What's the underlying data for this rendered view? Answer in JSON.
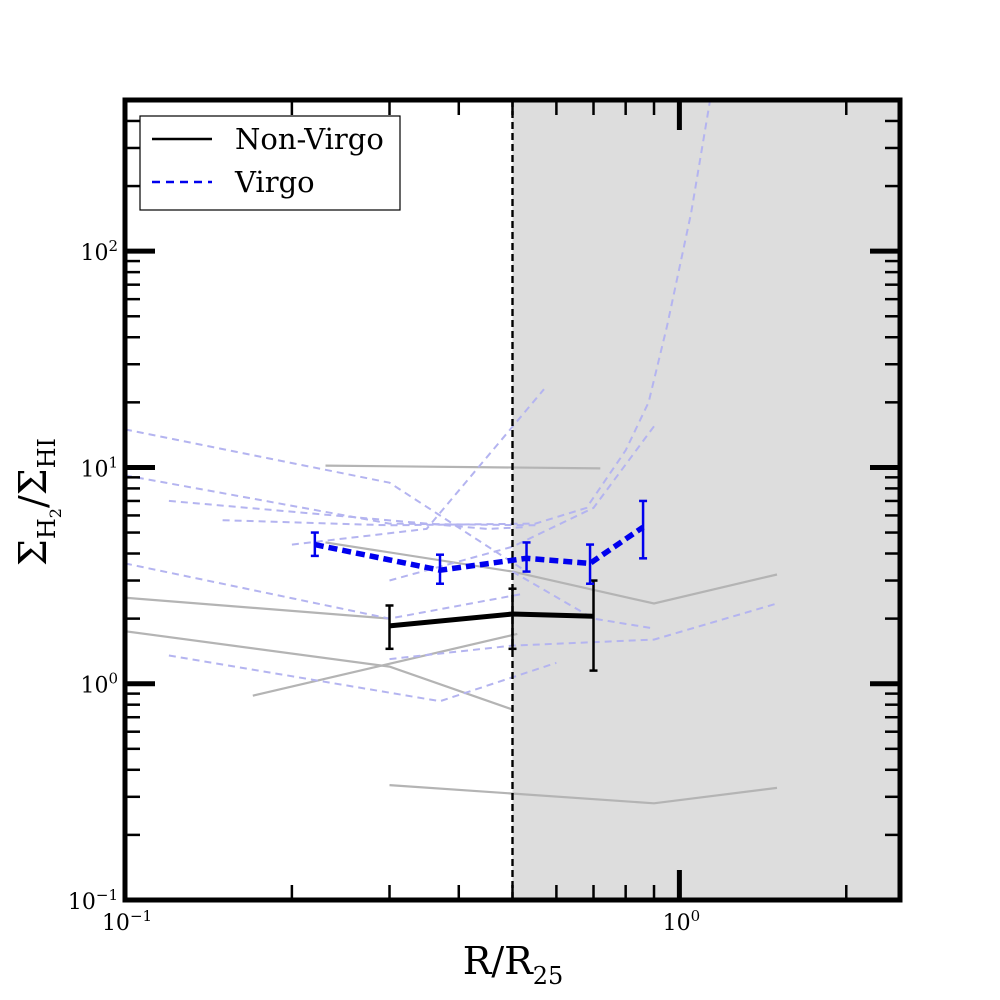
{
  "chart_data": {
    "type": "line",
    "x_scale": "log",
    "y_scale": "log",
    "xlim": [
      0.1,
      2.5
    ],
    "ylim": [
      0.1,
      500
    ],
    "x_ticks": [
      {
        "value": 0.1,
        "base": "10",
        "exp": "−1"
      },
      {
        "value": 1,
        "base": "10",
        "exp": "0"
      }
    ],
    "y_ticks": [
      {
        "value": 0.1,
        "base": "10",
        "exp": "−1"
      },
      {
        "value": 1,
        "base": "10",
        "exp": "0"
      },
      {
        "value": 10,
        "base": "10",
        "exp": "1"
      },
      {
        "value": 100,
        "base": "10",
        "exp": "2"
      }
    ],
    "xlabel": {
      "main": "R/R",
      "sub": "25"
    },
    "ylabel": {
      "sigma": "Σ",
      "h2_main": "H",
      "h2_sub": "2",
      "sep": "/",
      "hi": "HI"
    },
    "vline_x": 0.5,
    "shaded_region_x": [
      0.5,
      2.5
    ],
    "colors": {
      "non_virgo": "#000000",
      "virgo": "#0000ee",
      "individual_non_virgo": "#b4b4b4",
      "individual_virgo": "#b4b4f0",
      "shade": "#dddddd"
    },
    "legend": {
      "location": "upper-left",
      "entries": [
        {
          "label": "Non-Virgo",
          "style": "solid",
          "color": "#000000"
        },
        {
          "label": "Virgo",
          "style": "dashed",
          "color": "#0000ee"
        }
      ]
    },
    "series": [
      {
        "name": "Non-Virgo",
        "style": "solid",
        "x": [
          0.3,
          0.5,
          0.7
        ],
        "y": [
          1.85,
          2.1,
          2.05
        ],
        "yerr_low": [
          1.45,
          1.45,
          1.15
        ],
        "yerr_high": [
          2.3,
          2.75,
          3.0
        ]
      },
      {
        "name": "Virgo",
        "style": "dashed",
        "x": [
          0.22,
          0.37,
          0.53,
          0.69,
          0.86
        ],
        "y": [
          4.4,
          3.35,
          3.8,
          3.6,
          5.3
        ],
        "yerr_low": [
          3.9,
          2.9,
          3.3,
          2.9,
          3.8
        ],
        "yerr_high": [
          5.0,
          3.95,
          4.5,
          4.4,
          7.0
        ]
      }
    ],
    "individual_non_virgo": [
      {
        "x": [
          0.23,
          0.72
        ],
        "y": [
          10.2,
          9.9
        ]
      },
      {
        "x": [
          0.23,
          0.5,
          0.9,
          1.5
        ],
        "y": [
          4.5,
          3.3,
          2.35,
          3.2
        ]
      },
      {
        "x": [
          0.1,
          0.3
        ],
        "y": [
          2.5,
          2.0
        ]
      },
      {
        "x": [
          0.1,
          0.3,
          0.5
        ],
        "y": [
          1.75,
          1.2,
          0.76
        ]
      },
      {
        "x": [
          0.17,
          0.51
        ],
        "y": [
          0.88,
          1.7
        ]
      },
      {
        "x": [
          0.3,
          0.9,
          1.5
        ],
        "y": [
          0.34,
          0.28,
          0.33
        ]
      }
    ],
    "individual_virgo": [
      {
        "x": [
          0.1,
          0.3,
          0.53
        ],
        "y": [
          15,
          8.5,
          3.3
        ]
      },
      {
        "x": [
          0.1,
          0.3,
          0.55
        ],
        "y": [
          9.2,
          5.5,
          5.4
        ]
      },
      {
        "x": [
          0.12,
          0.45,
          0.53
        ],
        "y": [
          7.0,
          5.2,
          5.3
        ]
      },
      {
        "x": [
          0.2,
          0.35,
          0.57
        ],
        "y": [
          4.4,
          5.2,
          23
        ]
      },
      {
        "x": [
          0.15,
          0.3,
          0.55,
          0.68,
          0.8,
          0.88,
          0.95,
          1.05,
          1.15
        ],
        "y": [
          5.7,
          5.4,
          5.5,
          6.5,
          12,
          20,
          45,
          150,
          600
        ]
      },
      {
        "x": [
          0.1,
          0.3,
          0.52
        ],
        "y": [
          3.6,
          2.0,
          2.6
        ]
      },
      {
        "x": [
          0.3,
          0.5,
          0.7,
          0.9
        ],
        "y": [
          3.0,
          4.3,
          6.5,
          15.5
        ]
      },
      {
        "x": [
          0.5,
          0.7,
          0.9
        ],
        "y": [
          3.3,
          2.0,
          1.8
        ]
      },
      {
        "x": [
          0.3,
          0.5,
          0.9,
          1.5
        ],
        "y": [
          1.3,
          1.5,
          1.6,
          2.35
        ]
      },
      {
        "x": [
          0.12,
          0.37,
          0.6
        ],
        "y": [
          1.35,
          0.83,
          1.25
        ]
      }
    ]
  }
}
